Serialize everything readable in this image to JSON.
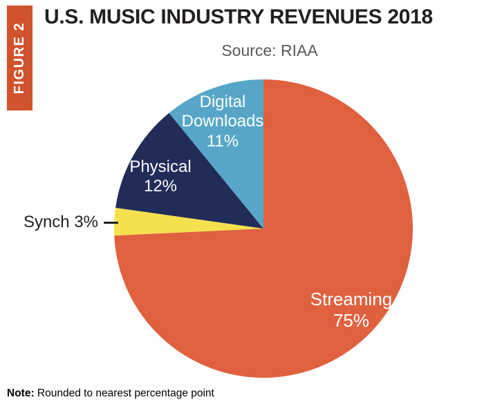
{
  "figure_label": "FIGURE 2",
  "title": "U.S. MUSIC INDUSTRY REVENUES 2018",
  "source": "Source: RIAA",
  "note_bold": "Note:",
  "note_text": " Rounded to nearest percentage point",
  "colors": {
    "streaming": "#E06140",
    "synch": "#F5E14E",
    "physical": "#222C59",
    "digital": "#57A6C8",
    "figure_banner": "#D1532D",
    "title_text": "#231F20",
    "source_text": "#58595B"
  },
  "chart_data": {
    "type": "pie",
    "title": "U.S. MUSIC INDUSTRY REVENUES 2018",
    "source": "RIAA",
    "note": "Rounded to nearest percentage point",
    "start_angle_deg": 0,
    "direction": "clockwise",
    "slices": [
      {
        "label": "Streaming",
        "value": 75,
        "color": "#E06140"
      },
      {
        "label": "Synch",
        "value": 3,
        "color": "#F5E14E"
      },
      {
        "label": "Physical",
        "value": 12,
        "color": "#222C59"
      },
      {
        "label": "Digital Downloads",
        "value": 11,
        "color": "#57A6C8"
      }
    ]
  },
  "labels": {
    "digital": {
      "line1": "Digital",
      "line2": "Downloads",
      "line3": "11%"
    },
    "physical": {
      "line1": "Physical",
      "line2": "12%"
    },
    "streaming": {
      "line1": "Streaming",
      "line2": "75%"
    },
    "synch": {
      "text": "Synch 3%"
    }
  }
}
